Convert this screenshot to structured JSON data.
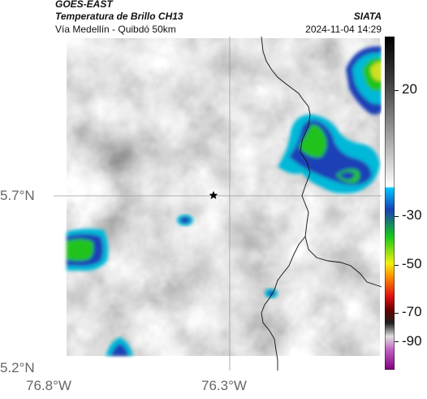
{
  "header": {
    "satellite": "GOES-EAST",
    "product": "Temperatura de Brillo CH13",
    "region": "Vía Medellín - Quibdó 50km",
    "agency": "SIATA",
    "datetime": "2024-11-04 14:29"
  },
  "map": {
    "lon_labels": [
      "76.8°W",
      "76.3°W"
    ],
    "lat_labels": [
      "5.7°N",
      "5.2°N"
    ],
    "marker": "star",
    "colors": {
      "background_gray_light": "#e8e8e8",
      "background_gray_dark": "#8a8a8a",
      "cold_blue": "#1a3fb5",
      "cold_cyan": "#00b8d8",
      "cold_green": "#21c21e",
      "cold_yellow": "#e8e810",
      "border_line": "#000000",
      "grid_line": "#9a9a9a"
    }
  },
  "colorbar": {
    "ticks": [
      "20",
      "-30",
      "-50",
      "-70",
      "-90"
    ]
  }
}
